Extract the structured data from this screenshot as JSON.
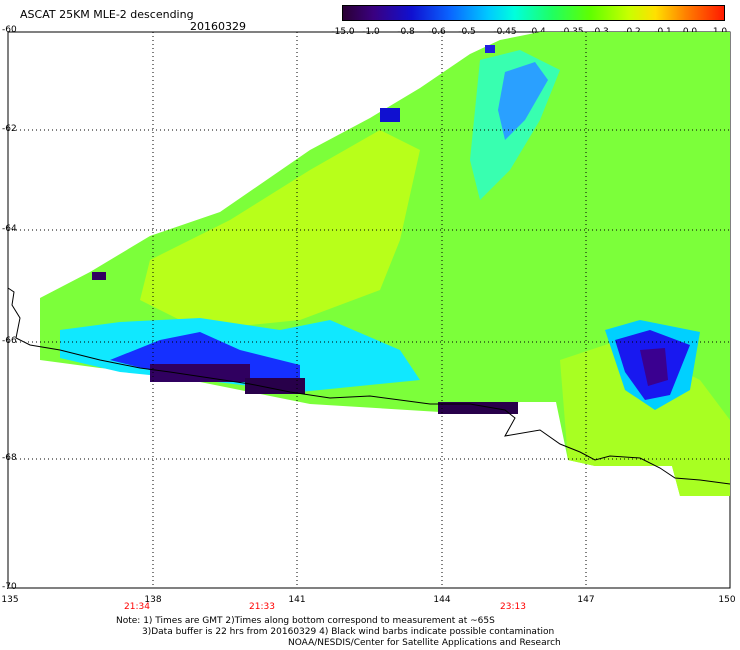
{
  "title": "ASCAT 25KM MLE-2 descending",
  "date": "20160329",
  "colorbar": {
    "ticks": [
      "-15.0",
      "-1.0",
      "-0.8",
      "-0.6",
      "-0.5",
      "-0.45",
      "-0.4",
      "-0.35",
      "-0.3",
      "-0.2",
      "-0.1",
      "0.0",
      "1.0"
    ]
  },
  "axes": {
    "lat_labels": [
      "-60",
      "-62",
      "-64",
      "-66",
      "-68",
      "-70"
    ],
    "lon_labels": [
      "135",
      "138",
      "141",
      "144",
      "147",
      "150"
    ]
  },
  "pass_times": [
    "21:34",
    "21:33",
    "23:13"
  ],
  "notes": {
    "line1": "Note: 1) Times are GMT 2)Times along bottom correspond to measurement at ~65S",
    "line2": "3)Data buffer is 22 hrs from 20160329 4) Black wind barbs indicate possible contamination",
    "line3": "NOAA/NESDIS/Center for Satellite Applications and Research"
  }
}
